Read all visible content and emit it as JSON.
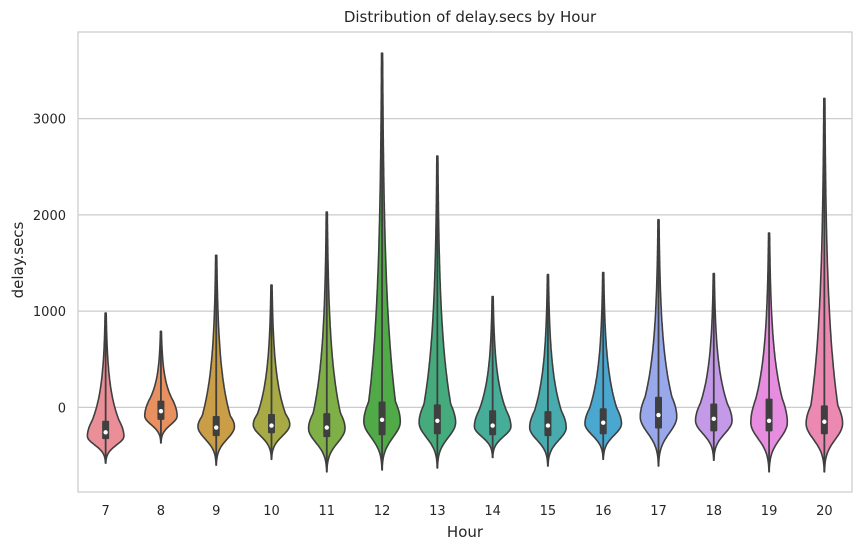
{
  "chart_data": {
    "type": "violin",
    "title": "Distribution of delay.secs by Hour",
    "xlabel": "Hour",
    "ylabel": "delay.secs",
    "ylim": [
      -880,
      3900
    ],
    "yticks": [
      0,
      1000,
      2000,
      3000
    ],
    "grid": "horizontal",
    "legend": "none",
    "categories": [
      "7",
      "8",
      "9",
      "10",
      "11",
      "12",
      "13",
      "14",
      "15",
      "16",
      "17",
      "18",
      "19",
      "20"
    ],
    "colors": [
      "#ea8e98",
      "#e8905f",
      "#c99e46",
      "#a7aa45",
      "#7fb047",
      "#4faa47",
      "#45ab7d",
      "#46ad98",
      "#48abae",
      "#4aa8d0",
      "#99a8ea",
      "#c49ae8",
      "#e68ddf",
      "#ec89b2"
    ],
    "series": [
      {
        "hour": "7",
        "min": -580,
        "q1": -330,
        "median": -260,
        "q3": -140,
        "max": 980,
        "peak": -300,
        "width": 0.62
      },
      {
        "hour": "8",
        "min": -370,
        "q1": -130,
        "median": -40,
        "q3": 70,
        "max": 790,
        "peak": -90,
        "width": 0.55
      },
      {
        "hour": "9",
        "min": -600,
        "q1": -300,
        "median": -210,
        "q3": -90,
        "max": 1580,
        "peak": -200,
        "width": 0.62
      },
      {
        "hour": "10",
        "min": -540,
        "q1": -270,
        "median": -190,
        "q3": -70,
        "max": 1270,
        "peak": -180,
        "width": 0.62
      },
      {
        "hour": "11",
        "min": -670,
        "q1": -310,
        "median": -210,
        "q3": -60,
        "max": 2030,
        "peak": -220,
        "width": 0.62
      },
      {
        "hour": "12",
        "min": -650,
        "q1": -290,
        "median": -130,
        "q3": 60,
        "max": 3680,
        "peak": -150,
        "width": 0.62
      },
      {
        "hour": "13",
        "min": -630,
        "q1": -280,
        "median": -140,
        "q3": 30,
        "max": 2610,
        "peak": -160,
        "width": 0.62
      },
      {
        "hour": "14",
        "min": -520,
        "q1": -290,
        "median": -190,
        "q3": -30,
        "max": 1150,
        "peak": -200,
        "width": 0.62
      },
      {
        "hour": "15",
        "min": -610,
        "q1": -300,
        "median": -190,
        "q3": -40,
        "max": 1380,
        "peak": -210,
        "width": 0.62
      },
      {
        "hour": "16",
        "min": -540,
        "q1": -280,
        "median": -160,
        "q3": -10,
        "max": 1400,
        "peak": -170,
        "width": 0.62
      },
      {
        "hour": "17",
        "min": -610,
        "q1": -220,
        "median": -80,
        "q3": 110,
        "max": 1950,
        "peak": -100,
        "width": 0.62
      },
      {
        "hour": "18",
        "min": -550,
        "q1": -250,
        "median": -120,
        "q3": 40,
        "max": 1390,
        "peak": -140,
        "width": 0.62
      },
      {
        "hour": "19",
        "min": -670,
        "q1": -250,
        "median": -140,
        "q3": 90,
        "max": 1810,
        "peak": -160,
        "width": 0.62
      },
      {
        "hour": "20",
        "min": -670,
        "q1": -280,
        "median": -150,
        "q3": 20,
        "max": 3210,
        "peak": -170,
        "width": 0.62
      }
    ]
  }
}
